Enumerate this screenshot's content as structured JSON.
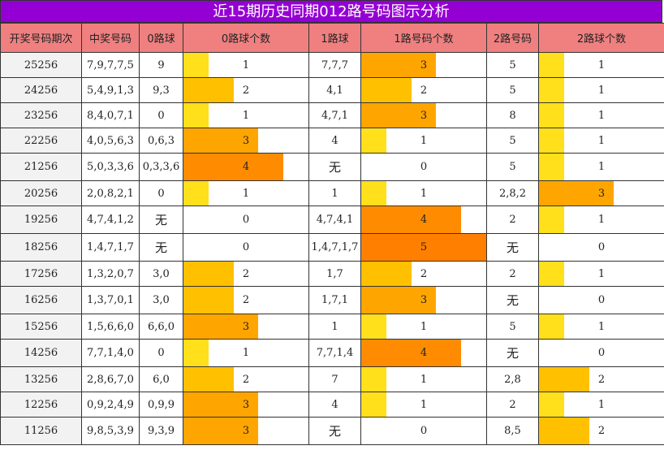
{
  "title": "近15期历史同期012路号码图示分析",
  "headers": [
    "开奖号码期次",
    "中奖号码",
    "0路球",
    "0路球个数",
    "1路球",
    "1路号码个数",
    "2路号码",
    "2路球个数"
  ],
  "none_text": "无",
  "max_count": 5,
  "colors": {
    "header_bg": "#f08080",
    "title_bg": "#9400d3",
    "count_1": "#ffe01a",
    "count_2": "#ffc000",
    "count_3": "#ffa500",
    "count_4": "#ff8c00",
    "count_5": "#ff8000"
  },
  "rows": [
    {
      "issue": "25256",
      "numbers": "7,9,7,7,5",
      "r0": "9",
      "c0": 1,
      "r1": "7,7,7",
      "c1": 3,
      "r2": "5",
      "c2": 1
    },
    {
      "issue": "24256",
      "numbers": "5,4,9,1,3",
      "r0": "9,3",
      "c0": 2,
      "r1": "4,1",
      "c1": 2,
      "r2": "5",
      "c2": 1
    },
    {
      "issue": "23256",
      "numbers": "8,4,0,7,1",
      "r0": "0",
      "c0": 1,
      "r1": "4,7,1",
      "c1": 3,
      "r2": "8",
      "c2": 1
    },
    {
      "issue": "22256",
      "numbers": "4,0,5,6,3",
      "r0": "0,6,3",
      "c0": 3,
      "r1": "4",
      "c1": 1,
      "r2": "5",
      "c2": 1
    },
    {
      "issue": "21256",
      "numbers": "5,0,3,3,6",
      "r0": "0,3,3,6",
      "c0": 4,
      "r1": "无",
      "c1": 0,
      "r2": "5",
      "c2": 1
    },
    {
      "issue": "20256",
      "numbers": "2,0,8,2,1",
      "r0": "0",
      "c0": 1,
      "r1": "1",
      "c1": 1,
      "r2": "2,8,2",
      "c2": 3
    },
    {
      "issue": "19256",
      "numbers": "4,7,4,1,2",
      "r0": "无",
      "c0": 0,
      "r1": "4,7,4,1",
      "c1": 4,
      "r2": "2",
      "c2": 1
    },
    {
      "issue": "18256",
      "numbers": "1,4,7,1,7",
      "r0": "无",
      "c0": 0,
      "r1": "1,4,7,1,7",
      "c1": 5,
      "r2": "无",
      "c2": 0
    },
    {
      "issue": "17256",
      "numbers": "1,3,2,0,7",
      "r0": "3,0",
      "c0": 2,
      "r1": "1,7",
      "c1": 2,
      "r2": "2",
      "c2": 1
    },
    {
      "issue": "16256",
      "numbers": "1,3,7,0,1",
      "r0": "3,0",
      "c0": 2,
      "r1": "1,7,1",
      "c1": 3,
      "r2": "无",
      "c2": 0
    },
    {
      "issue": "15256",
      "numbers": "1,5,6,6,0",
      "r0": "6,6,0",
      "c0": 3,
      "r1": "1",
      "c1": 1,
      "r2": "5",
      "c2": 1
    },
    {
      "issue": "14256",
      "numbers": "7,7,1,4,0",
      "r0": "0",
      "c0": 1,
      "r1": "7,7,1,4",
      "c1": 4,
      "r2": "无",
      "c2": 0
    },
    {
      "issue": "13256",
      "numbers": "2,8,6,7,0",
      "r0": "6,0",
      "c0": 2,
      "r1": "7",
      "c1": 1,
      "r2": "2,8",
      "c2": 2
    },
    {
      "issue": "12256",
      "numbers": "0,9,2,4,9",
      "r0": "0,9,9",
      "c0": 3,
      "r1": "4",
      "c1": 1,
      "r2": "2",
      "c2": 1
    },
    {
      "issue": "11256",
      "numbers": "9,8,5,3,9",
      "r0": "9,3,9",
      "c0": 3,
      "r1": "无",
      "c1": 0,
      "r2": "8,5",
      "c2": 2
    }
  ]
}
